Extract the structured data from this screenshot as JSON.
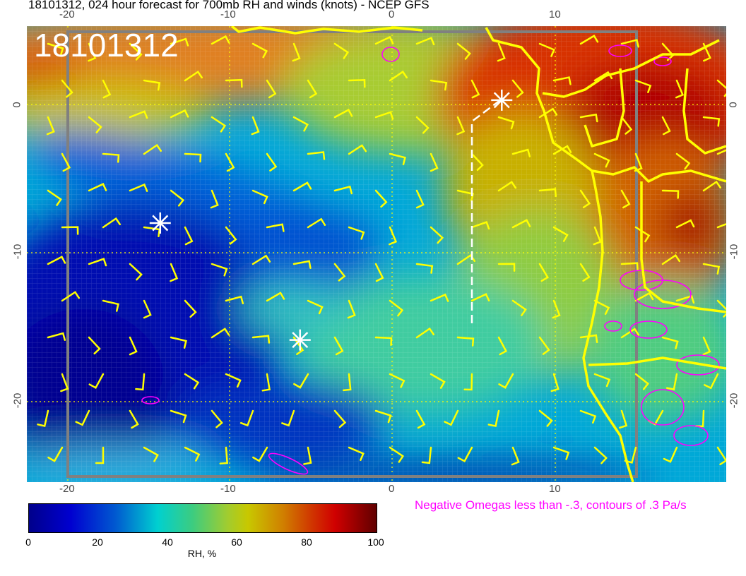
{
  "title": "18101312, 024 hour forecast for 700mb RH and winds (knots) - NCEP GFS",
  "stamp": "18101312",
  "axes": {
    "lon_ticks": [
      "-20",
      "-10",
      "0",
      "10"
    ],
    "lat_ticks": [
      "0",
      "-10",
      "-20"
    ],
    "lon_range": [
      -22.5,
      20.5
    ],
    "lat_range": [
      -25.5,
      5.3
    ]
  },
  "colorbar": {
    "label": "RH, %",
    "ticks": [
      "0",
      "20",
      "40",
      "60",
      "80",
      "100"
    ],
    "range": [
      0,
      100
    ]
  },
  "note": "Negative Omegas less than -.3, contours of .3 Pa/s",
  "colors": {
    "barbs": "#ffff00",
    "omega": "#ff00ff",
    "coast": "#ffff00",
    "markers": "#ffffff"
  },
  "markers": [
    {
      "lon": -14.3,
      "lat": -8.0
    },
    {
      "lon": -5.7,
      "lat": -15.9
    },
    {
      "lon": 6.7,
      "lat": 0.3
    }
  ]
}
